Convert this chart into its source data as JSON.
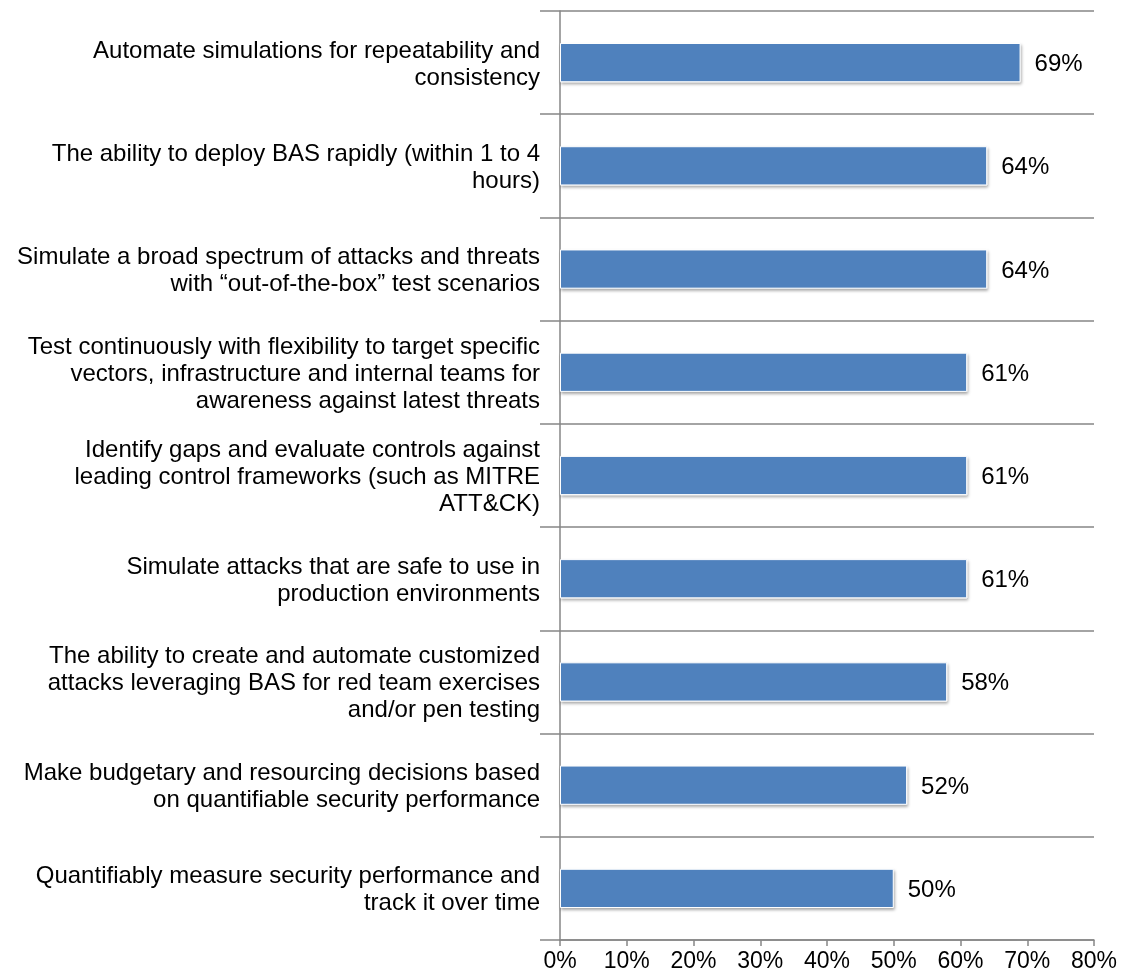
{
  "chart_data": {
    "type": "bar",
    "orientation": "horizontal",
    "categories": [
      "Automate simulations for repeatability and consistency",
      "The ability to deploy BAS rapidly (within 1 to 4 hours)",
      "Simulate a broad spectrum of attacks and threats with “out-of-the-box” test scenarios",
      "Test continuously with flexibility to target specific vectors, infrastructure and internal teams for awareness against latest threats",
      "Identify gaps and evaluate controls against leading control frameworks (such as MITRE ATT&CK)",
      "Simulate attacks that are safe to use in production environments",
      "The ability to create and automate customized attacks leveraging BAS for red team exercises and/or pen testing",
      "Make budgetary and resourcing decisions based on quantifiable security performance",
      "Quantifiably measure security performance and track it over time"
    ],
    "values": [
      69,
      64,
      64,
      61,
      61,
      61,
      58,
      52,
      50
    ],
    "value_labels": [
      "69%",
      "64%",
      "64%",
      "61%",
      "61%",
      "61%",
      "58%",
      "52%",
      "50%"
    ],
    "color": "#4f81bd",
    "xlim": [
      0,
      80
    ],
    "xticks": [
      {
        "value": 0,
        "label": "0%"
      },
      {
        "value": 10,
        "label": "10%"
      },
      {
        "value": 20,
        "label": "20%"
      },
      {
        "value": 30,
        "label": "30%"
      },
      {
        "value": 40,
        "label": "40%"
      },
      {
        "value": 50,
        "label": "50%"
      },
      {
        "value": 60,
        "label": "60%"
      },
      {
        "value": 70,
        "label": "70%"
      },
      {
        "value": 80,
        "label": "80%"
      }
    ],
    "grid": "y"
  }
}
